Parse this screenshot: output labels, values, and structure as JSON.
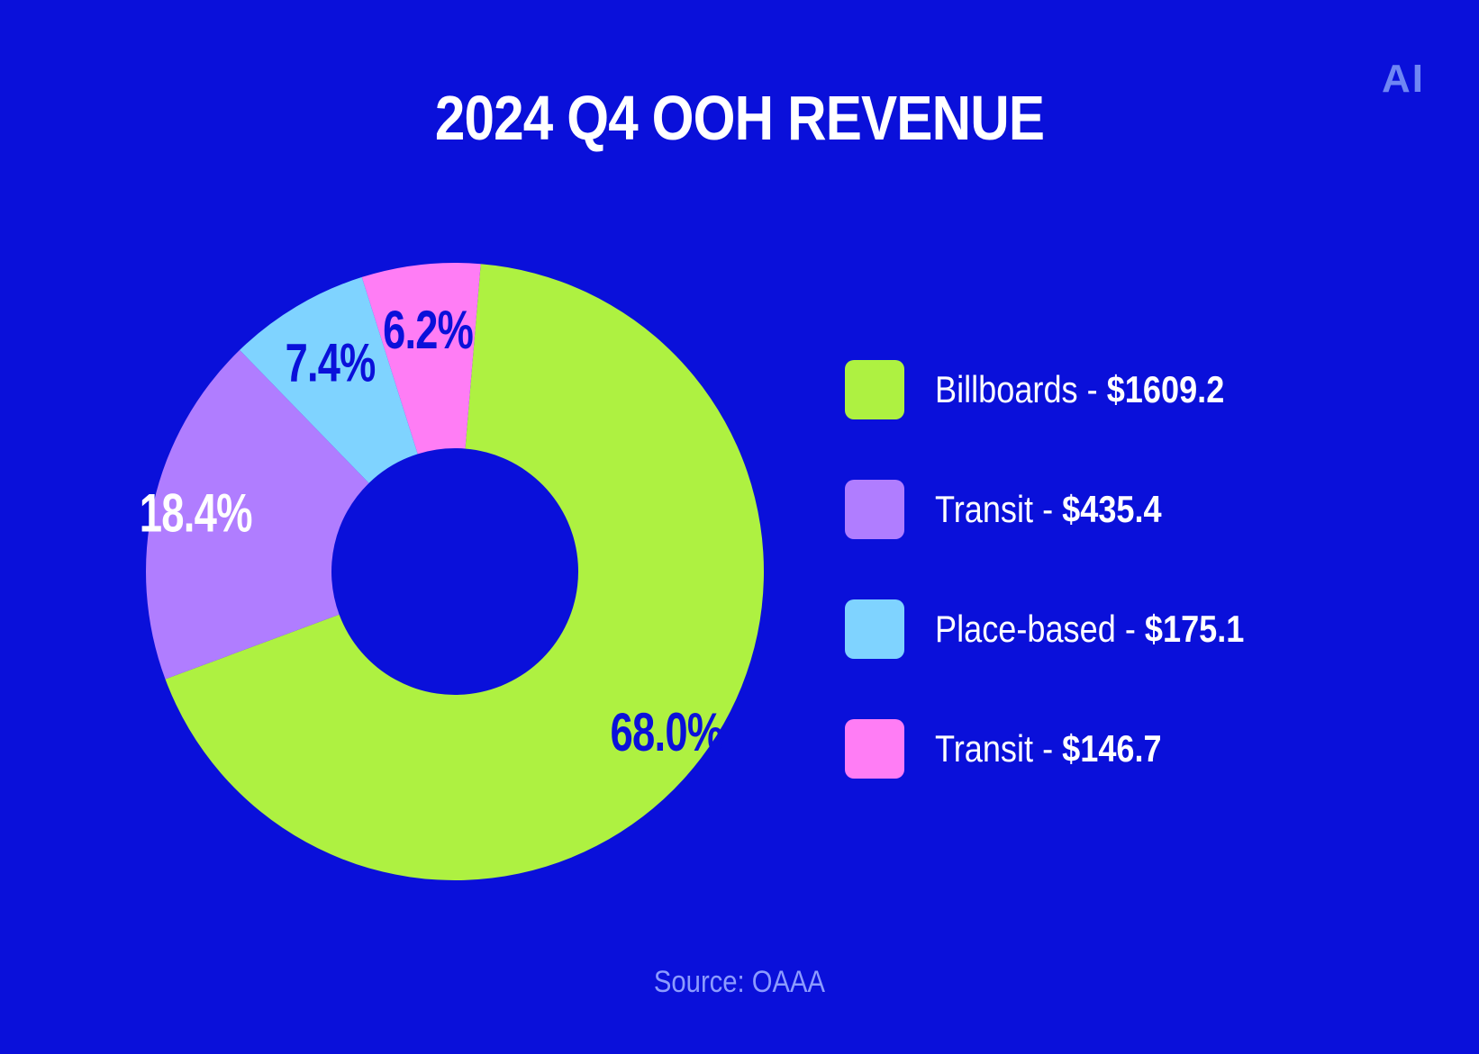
{
  "logo": "AI",
  "chart_data": {
    "type": "pie",
    "title": "2024 Q4 OOH REVENUE",
    "slices": [
      {
        "name": "Billboards",
        "value": 1609.2,
        "value_label": "$1609.2",
        "percent_label": "68.0%",
        "color": "#aef141",
        "label_color": "#0a10da"
      },
      {
        "name": "Transit",
        "value": 435.4,
        "value_label": "$435.4",
        "percent_label": "18.4%",
        "color": "#b07dff",
        "label_color": "#ffffff"
      },
      {
        "name": "Place-based",
        "value": 175.1,
        "value_label": "$175.1",
        "percent_label": "7.4%",
        "color": "#7fd3ff",
        "label_color": "#0a10da"
      },
      {
        "name": "Transit",
        "value": 146.7,
        "value_label": "$146.7",
        "percent_label": "6.2%",
        "color": "#ff7df5",
        "label_color": "#0a10da"
      }
    ],
    "legend_position": "right",
    "source": "Source: OAAA"
  }
}
